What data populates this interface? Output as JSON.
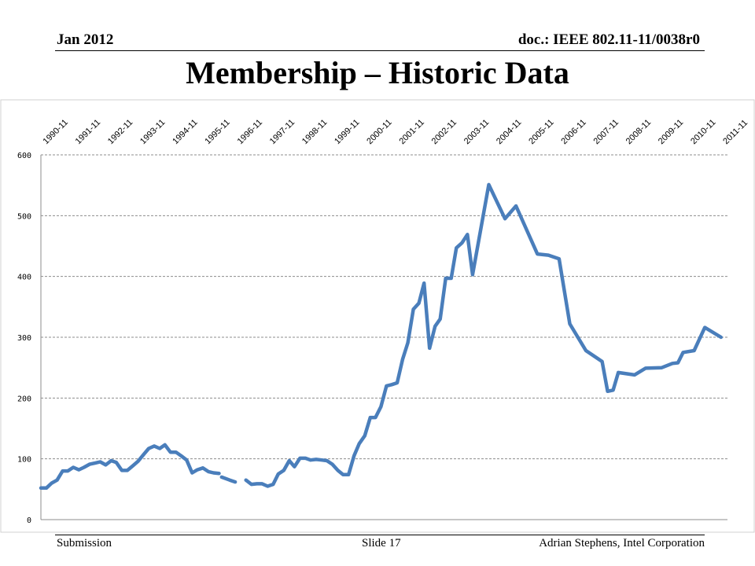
{
  "header": {
    "date": "Jan 2012",
    "doc": "doc.: IEEE 802.11-11/0038r0"
  },
  "title": "Membership – Historic Data",
  "footer": {
    "left": "Submission",
    "center": "Slide 17",
    "right": "Adrian Stephens, Intel Corporation"
  },
  "chart_data": {
    "type": "line",
    "title": "",
    "xlabel": "",
    "ylabel": "",
    "ylim": [
      0,
      600
    ],
    "yticks": [
      0,
      100,
      200,
      300,
      400,
      500,
      600
    ],
    "xlim": [
      1990.75,
      2011.95
    ],
    "grid": true,
    "gridlines": "horizontal-dashed",
    "legend": "none",
    "color": "#4a7ebb",
    "x_tick_labels": [
      "1990-11",
      "1991-11",
      "1992-11",
      "1993-11",
      "1994-11",
      "1995-11",
      "1996-11",
      "1997-11",
      "1998-11",
      "1999-11",
      "2000-11",
      "2001-11",
      "2002-11",
      "2003-11",
      "2004-11",
      "2005-11",
      "2006-11",
      "2007-11",
      "2008-11",
      "2009-11",
      "2010-11",
      "2011-11"
    ],
    "x_tick_values": [
      1990.917,
      1991.917,
      1992.917,
      1993.917,
      1994.917,
      1995.917,
      1996.917,
      1997.917,
      1998.917,
      1999.917,
      2000.917,
      2001.917,
      2002.917,
      2003.917,
      2004.917,
      2005.917,
      2006.917,
      2007.917,
      2008.917,
      2009.917,
      2010.917,
      2011.917
    ],
    "segments": [
      {
        "x": [
          1990.75,
          1990.92,
          1991.08,
          1991.25,
          1991.42,
          1991.58,
          1991.75,
          1991.92,
          1992.08,
          1992.25,
          1992.42,
          1992.58,
          1992.75,
          1992.92,
          1993.08,
          1993.25,
          1993.42,
          1993.58,
          1993.75,
          1993.92,
          1994.08,
          1994.25,
          1994.42,
          1994.58,
          1994.75,
          1994.92,
          1995.08,
          1995.25,
          1995.42,
          1995.58,
          1995.75,
          1995.92,
          1996.08,
          1996.25
        ],
        "y": [
          52,
          52,
          60,
          65,
          80,
          80,
          86,
          82,
          86,
          91,
          93,
          95,
          90,
          97,
          94,
          81,
          81,
          88,
          96,
          107,
          117,
          121,
          117,
          123,
          111,
          111,
          105,
          98,
          77,
          82,
          85,
          79,
          77,
          76
        ]
      },
      {
        "x": [
          1996.33,
          1996.58,
          1996.75
        ],
        "y": [
          70,
          65,
          62
        ]
      },
      {
        "x": [
          1997.08,
          1997.25,
          1997.42,
          1997.58,
          1997.75,
          1997.92,
          1998.08,
          1998.25,
          1998.42,
          1998.58,
          1998.75,
          1998.92,
          1999.08,
          1999.25,
          1999.42,
          1999.58,
          1999.75,
          1999.92,
          2000.08,
          2000.25,
          2000.42,
          2000.58,
          2000.75,
          2000.92,
          2001.08,
          2001.25,
          2001.42,
          2001.58,
          2001.75,
          2001.92,
          2002.08,
          2002.25,
          2002.42,
          2002.58,
          2002.75,
          2002.92,
          2003.08,
          2003.25,
          2003.42,
          2003.58,
          2003.75,
          2003.92,
          2004.08,
          2004.58,
          2005.08,
          2005.42,
          2006.08,
          2006.42,
          2006.75,
          2007.08,
          2007.58,
          2008.08,
          2008.25,
          2008.42,
          2008.58,
          2009.08,
          2009.42,
          2009.92,
          2010.25,
          2010.42,
          2010.58,
          2010.92,
          2011.25,
          2011.75
        ],
        "y": [
          65,
          58,
          59,
          59,
          55,
          58,
          75,
          81,
          97,
          87,
          101,
          101,
          98,
          99,
          98,
          97,
          91,
          81,
          74,
          74,
          105,
          125,
          138,
          168,
          168,
          186,
          220,
          222,
          225,
          264,
          291,
          346,
          356,
          389,
          282,
          318,
          330,
          397,
          397,
          447,
          455,
          469,
          403,
          551,
          495,
          516,
          437,
          435,
          429,
          322,
          278,
          260,
          211,
          213,
          242,
          238,
          249,
          250,
          257,
          258,
          275,
          278,
          316,
          300
        ]
      }
    ]
  }
}
